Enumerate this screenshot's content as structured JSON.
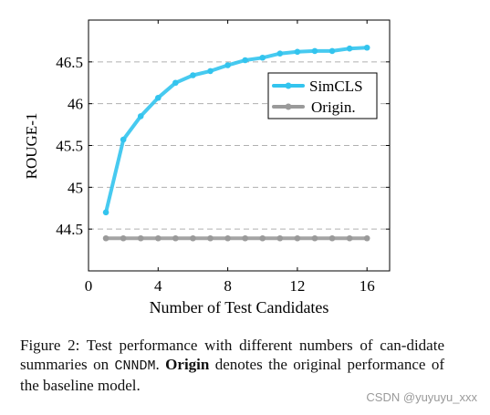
{
  "chart_data": {
    "type": "line",
    "xlabel": "Number of Test Candidates",
    "ylabel": "ROUGE-1",
    "xlim": [
      0,
      17.3
    ],
    "ylim": [
      44.0,
      47.0
    ],
    "xticks": [
      0,
      4,
      8,
      12,
      16
    ],
    "xtick_labels": [
      "0",
      "4",
      "8",
      "12",
      "16"
    ],
    "yticks": [
      44.5,
      45,
      45.5,
      46,
      46.5
    ],
    "ytick_labels": [
      "44.5",
      "45",
      "45.5",
      "46",
      "46.5"
    ],
    "grid": "horizontal dashed",
    "legend_position": "upper-right",
    "series": [
      {
        "name": "SimCLS",
        "color": "#33c4ee",
        "x": [
          1,
          2,
          3,
          4,
          5,
          6,
          7,
          8,
          9,
          10,
          11,
          12,
          13,
          14,
          15,
          16
        ],
        "y": [
          44.7,
          45.57,
          45.85,
          46.07,
          46.25,
          46.34,
          46.39,
          46.46,
          46.52,
          46.55,
          46.6,
          46.62,
          46.63,
          46.63,
          46.66,
          46.67
        ]
      },
      {
        "name": "Origin.",
        "color": "#9a9a9a",
        "x": [
          1,
          2,
          3,
          4,
          5,
          6,
          7,
          8,
          9,
          10,
          11,
          12,
          13,
          14,
          15,
          16
        ],
        "y": [
          44.39,
          44.39,
          44.39,
          44.39,
          44.39,
          44.39,
          44.39,
          44.39,
          44.39,
          44.39,
          44.39,
          44.39,
          44.39,
          44.39,
          44.39,
          44.39
        ]
      }
    ]
  },
  "caption": {
    "prefix": "Figure 2: Test performance with different numbers of can-didate summaries on ",
    "dataset": "CNNDM",
    "middle": ". ",
    "bold": "Origin",
    "suffix": " denotes the original performance of the baseline model."
  },
  "watermark": "CSDN @yuyuyu_xxx"
}
